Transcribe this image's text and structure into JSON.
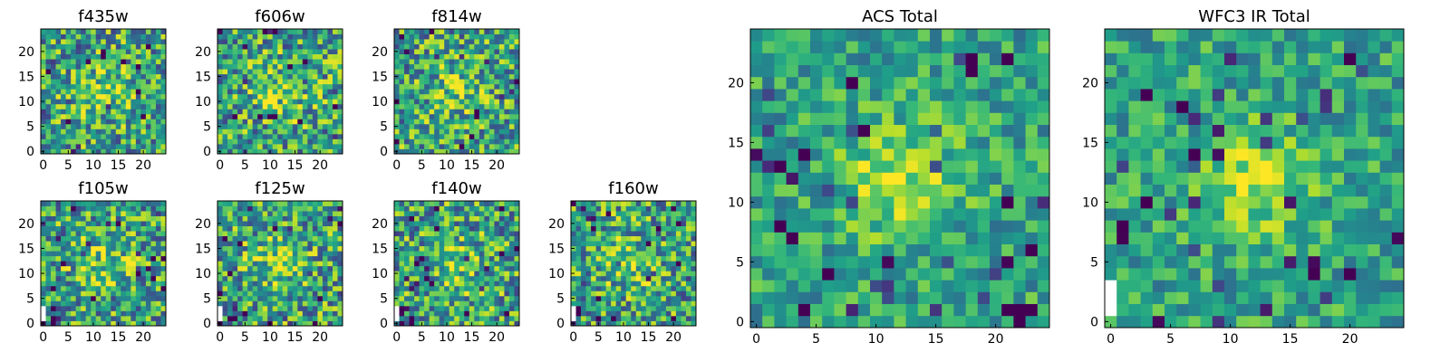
{
  "chart_data": [
    {
      "id": "f435w",
      "type": "heatmap",
      "title": "f435w",
      "xticks": [
        "0",
        "5",
        "10",
        "15",
        "20"
      ],
      "yticks": [
        "0",
        "5",
        "10",
        "15",
        "20"
      ],
      "xlim": [
        -0.5,
        24.5
      ],
      "ylim": [
        -0.5,
        24.5
      ],
      "grid_size": 25,
      "colormap": "viridis",
      "data": "noise image (25x25 pixels), values not labeled"
    },
    {
      "id": "f606w",
      "type": "heatmap",
      "title": "f606w",
      "xticks": [
        "0",
        "5",
        "10",
        "15",
        "20"
      ],
      "yticks": [
        "0",
        "5",
        "10",
        "15",
        "20"
      ],
      "xlim": [
        -0.5,
        24.5
      ],
      "ylim": [
        -0.5,
        24.5
      ],
      "grid_size": 25,
      "colormap": "viridis",
      "data": "noise image (25x25 pixels), values not labeled"
    },
    {
      "id": "f814w",
      "type": "heatmap",
      "title": "f814w",
      "xticks": [
        "0",
        "5",
        "10",
        "15",
        "20"
      ],
      "yticks": [
        "0",
        "5",
        "10",
        "15",
        "20"
      ],
      "xlim": [
        -0.5,
        24.5
      ],
      "ylim": [
        -0.5,
        24.5
      ],
      "grid_size": 25,
      "colormap": "viridis",
      "data": "noise image (25x25 pixels), values not labeled"
    },
    {
      "id": "f105w",
      "type": "heatmap",
      "title": "f105w",
      "xticks": [
        "0",
        "5",
        "10",
        "15",
        "20"
      ],
      "yticks": [
        "0",
        "5",
        "10",
        "15",
        "20"
      ],
      "xlim": [
        -0.5,
        24.5
      ],
      "ylim": [
        -0.5,
        24.5
      ],
      "grid_size": 25,
      "colormap": "viridis",
      "data": "noise image (25x25 pixels), values not labeled"
    },
    {
      "id": "f125w",
      "type": "heatmap",
      "title": "f125w",
      "xticks": [
        "0",
        "5",
        "10",
        "15",
        "20"
      ],
      "yticks": [
        "0",
        "5",
        "10",
        "15",
        "20"
      ],
      "xlim": [
        -0.5,
        24.5
      ],
      "ylim": [
        -0.5,
        24.5
      ],
      "grid_size": 25,
      "colormap": "viridis",
      "data": "noise image (25x25 pixels), values not labeled"
    },
    {
      "id": "f140w",
      "type": "heatmap",
      "title": "f140w",
      "xticks": [
        "0",
        "5",
        "10",
        "15",
        "20"
      ],
      "yticks": [
        "0",
        "5",
        "10",
        "15",
        "20"
      ],
      "xlim": [
        -0.5,
        24.5
      ],
      "ylim": [
        -0.5,
        24.5
      ],
      "grid_size": 25,
      "colormap": "viridis",
      "data": "noise image (25x25 pixels), values not labeled"
    },
    {
      "id": "f160w",
      "type": "heatmap",
      "title": "f160w",
      "xticks": [
        "0",
        "5",
        "10",
        "15",
        "20"
      ],
      "yticks": [
        "0",
        "5",
        "10",
        "15",
        "20"
      ],
      "xlim": [
        -0.5,
        24.5
      ],
      "ylim": [
        -0.5,
        24.5
      ],
      "grid_size": 25,
      "colormap": "viridis",
      "data": "noise image (25x25 pixels), values not labeled"
    },
    {
      "id": "acs-total",
      "type": "heatmap",
      "title": "ACS Total",
      "xticks": [
        "0",
        "5",
        "10",
        "15",
        "20"
      ],
      "yticks": [
        "0",
        "5",
        "10",
        "15",
        "20"
      ],
      "xlim": [
        -0.5,
        24.5
      ],
      "ylim": [
        -0.5,
        24.5
      ],
      "grid_size": 25,
      "colormap": "viridis",
      "data": "summed image (25x25 pixels), values not labeled"
    },
    {
      "id": "wfc3-ir-total",
      "type": "heatmap",
      "title": "WFC3 IR Total",
      "xticks": [
        "0",
        "5",
        "10",
        "15",
        "20"
      ],
      "yticks": [
        "0",
        "5",
        "10",
        "15",
        "20"
      ],
      "xlim": [
        -0.5,
        24.5
      ],
      "ylim": [
        -0.5,
        24.5
      ],
      "grid_size": 25,
      "colormap": "viridis",
      "data": "summed image (25x25 pixels), values not labeled"
    }
  ],
  "colors": {
    "low": "#440154",
    "mid_low": "#3b528b",
    "mid": "#21918c",
    "mid_high": "#5ec962",
    "high": "#fde725",
    "axis": "#000000"
  }
}
